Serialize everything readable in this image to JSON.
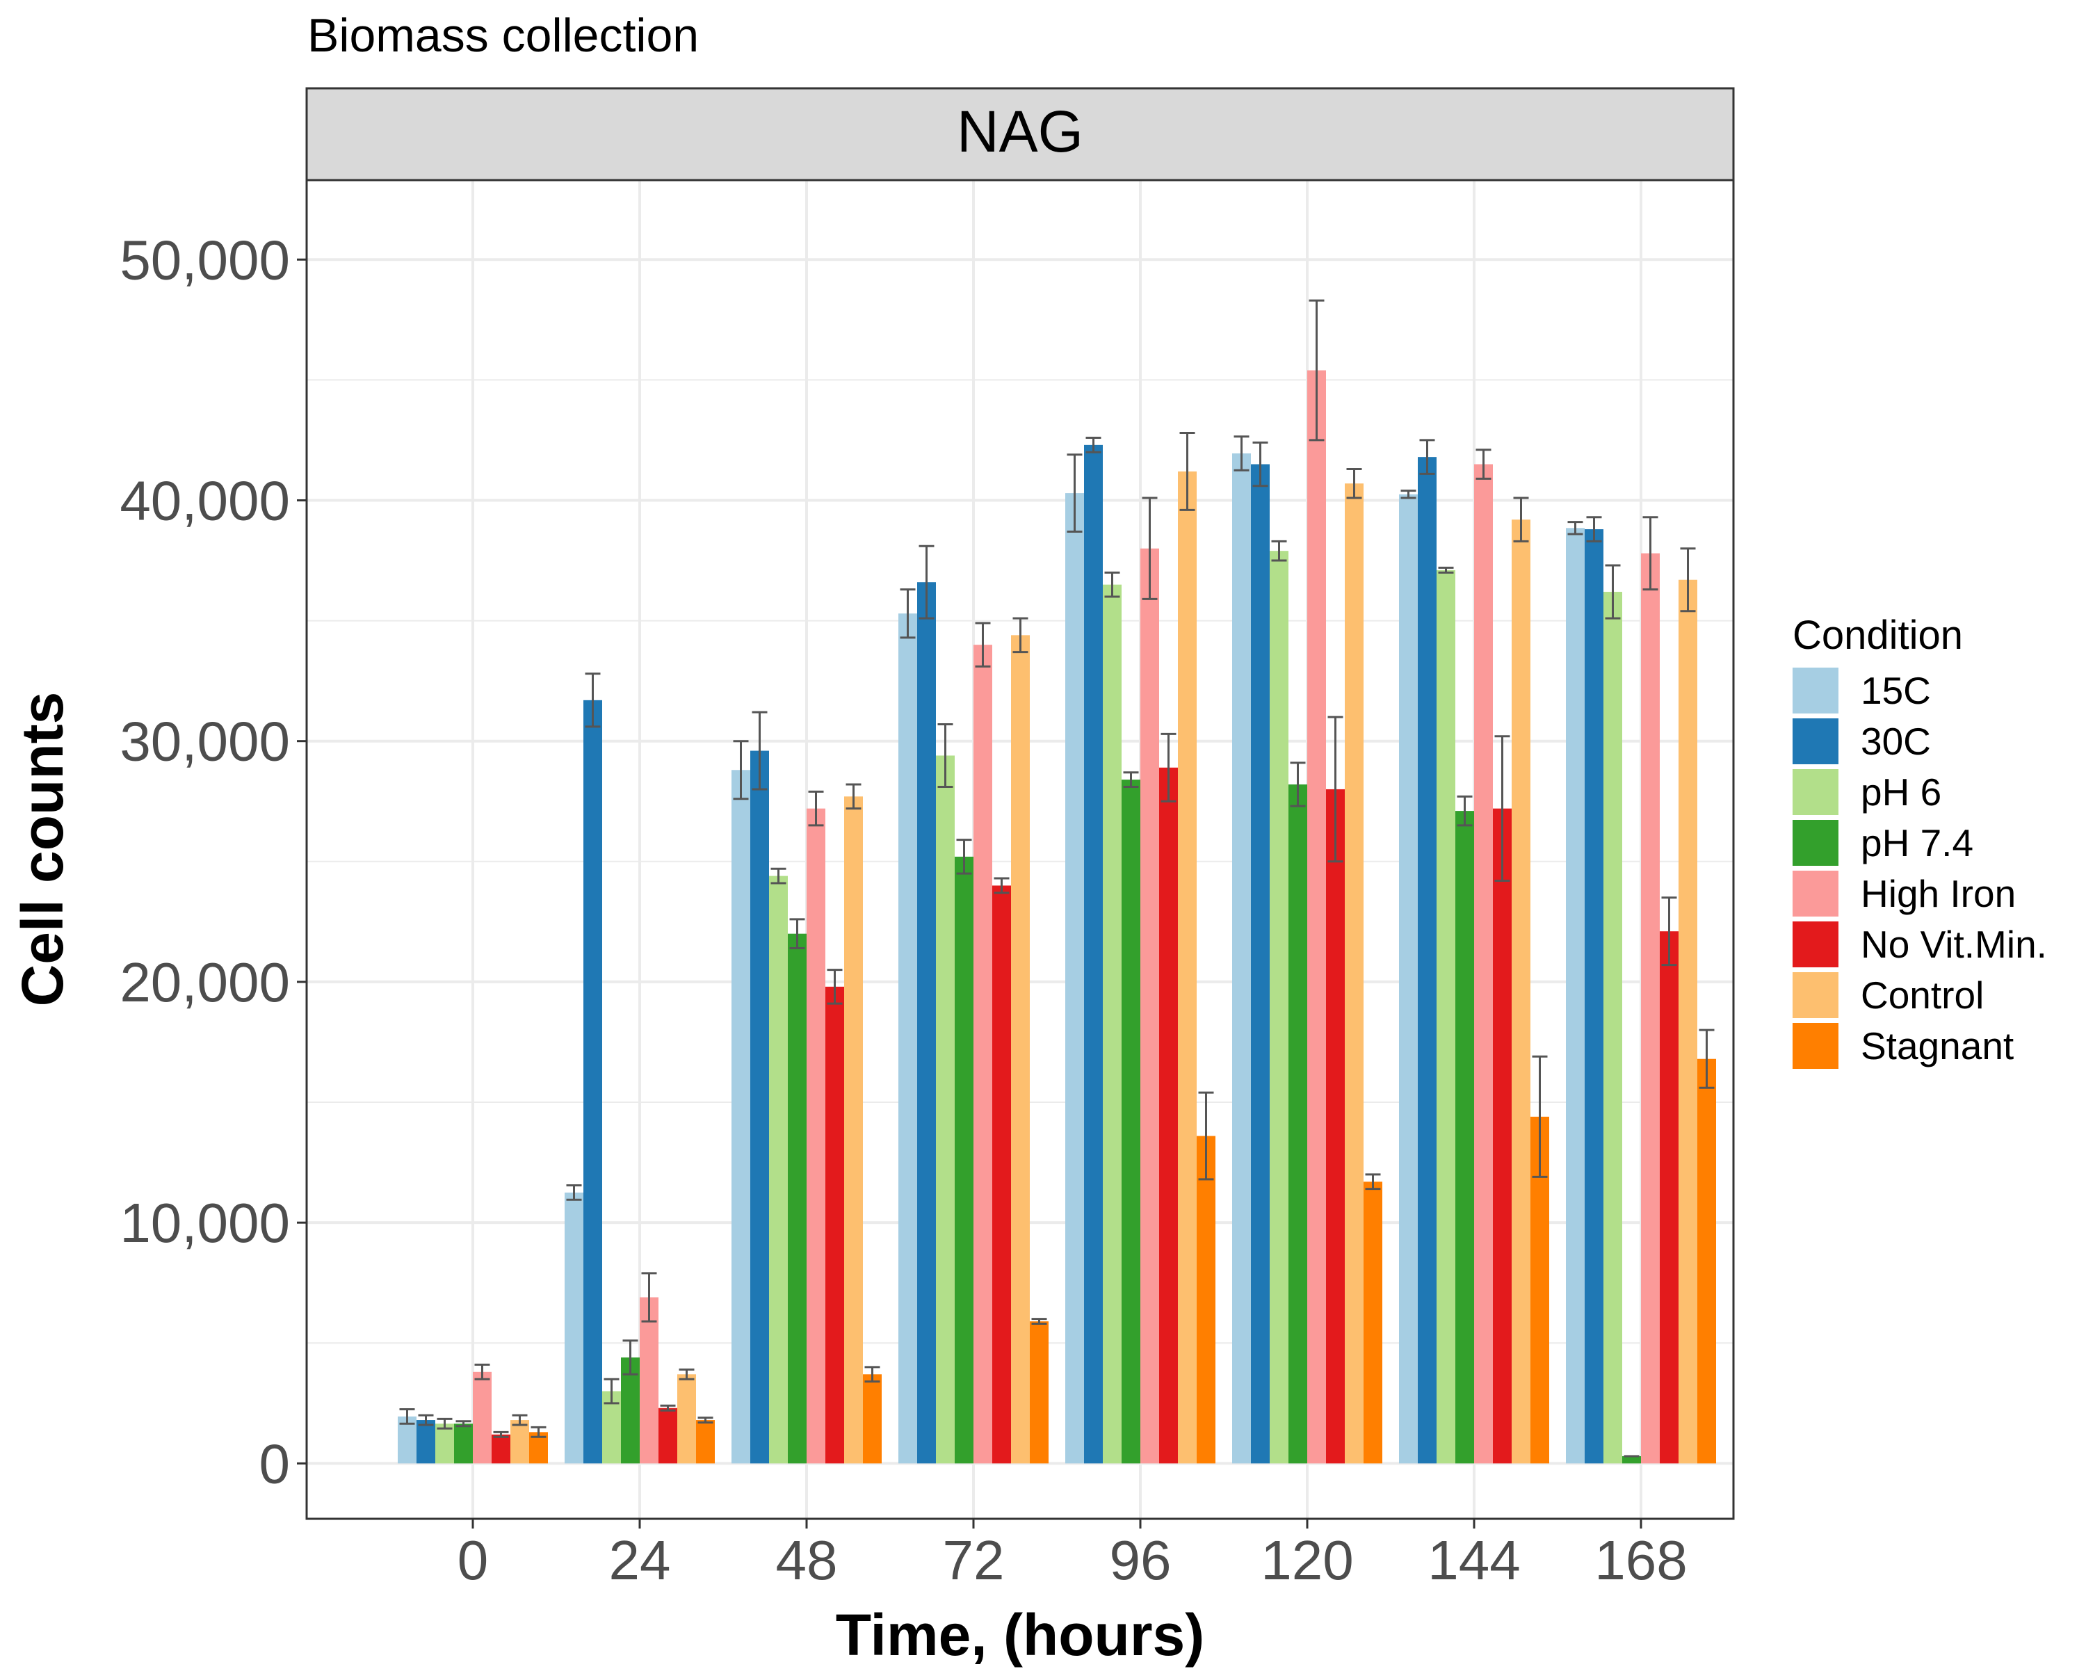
{
  "chart_data": {
    "type": "bar",
    "title": "Biomass collection",
    "facet_label": "NAG",
    "xlabel": "Time, (hours)",
    "ylabel": "Cell counts",
    "ylim": [
      -2300,
      53300
    ],
    "yticks": [
      0,
      10000,
      20000,
      30000,
      40000,
      50000
    ],
    "ytick_labels": [
      "0",
      "10,000",
      "20,000",
      "30,000",
      "40,000",
      "50,000"
    ],
    "categories": [
      "0",
      "24",
      "48",
      "72",
      "96",
      "120",
      "144",
      "168"
    ],
    "grid": true,
    "legend": {
      "title": "Condition",
      "position": "right"
    },
    "series": [
      {
        "name": "15C",
        "color": "#a6cee3",
        "values": [
          1950,
          11250,
          28800,
          35300,
          40300,
          41950,
          40250,
          38850
        ],
        "errors": [
          300,
          300,
          1200,
          1000,
          1600,
          700,
          150,
          250
        ]
      },
      {
        "name": "30C",
        "color": "#1f78b4",
        "values": [
          1800,
          31700,
          29600,
          36600,
          42300,
          41500,
          41800,
          38800
        ],
        "errors": [
          200,
          1100,
          1600,
          1500,
          300,
          900,
          700,
          500
        ]
      },
      {
        "name": "pH 6",
        "color": "#b2df8a",
        "values": [
          1650,
          3000,
          24400,
          29400,
          36500,
          37900,
          37100,
          36200
        ],
        "errors": [
          200,
          500,
          300,
          1300,
          500,
          400,
          100,
          1100
        ]
      },
      {
        "name": "pH 7.4",
        "color": "#33a02c",
        "values": [
          1650,
          4400,
          22000,
          25200,
          28400,
          28200,
          27100,
          300
        ],
        "errors": [
          100,
          700,
          600,
          700,
          300,
          900,
          600,
          0
        ]
      },
      {
        "name": "High Iron",
        "color": "#fb9a99",
        "values": [
          3800,
          6900,
          27200,
          34000,
          38000,
          45400,
          41500,
          37800
        ],
        "errors": [
          300,
          1000,
          700,
          900,
          2100,
          2900,
          600,
          1500
        ]
      },
      {
        "name": "No Vit.Min.",
        "color": "#e31a1c",
        "values": [
          1200,
          2300,
          19800,
          24000,
          28900,
          28000,
          27200,
          22100
        ],
        "errors": [
          100,
          100,
          700,
          300,
          1400,
          3000,
          3000,
          1400
        ]
      },
      {
        "name": "Control",
        "color": "#fdbf6f",
        "values": [
          1800,
          3700,
          27700,
          34400,
          41200,
          40700,
          39200,
          36700
        ],
        "errors": [
          200,
          200,
          500,
          700,
          1600,
          600,
          900,
          1300
        ]
      },
      {
        "name": "Stagnant",
        "color": "#ff7f00",
        "values": [
          1300,
          1800,
          3700,
          5900,
          13600,
          11700,
          14400,
          16800
        ],
        "errors": [
          200,
          100,
          300,
          100,
          1800,
          300,
          2500,
          1200
        ]
      }
    ]
  }
}
